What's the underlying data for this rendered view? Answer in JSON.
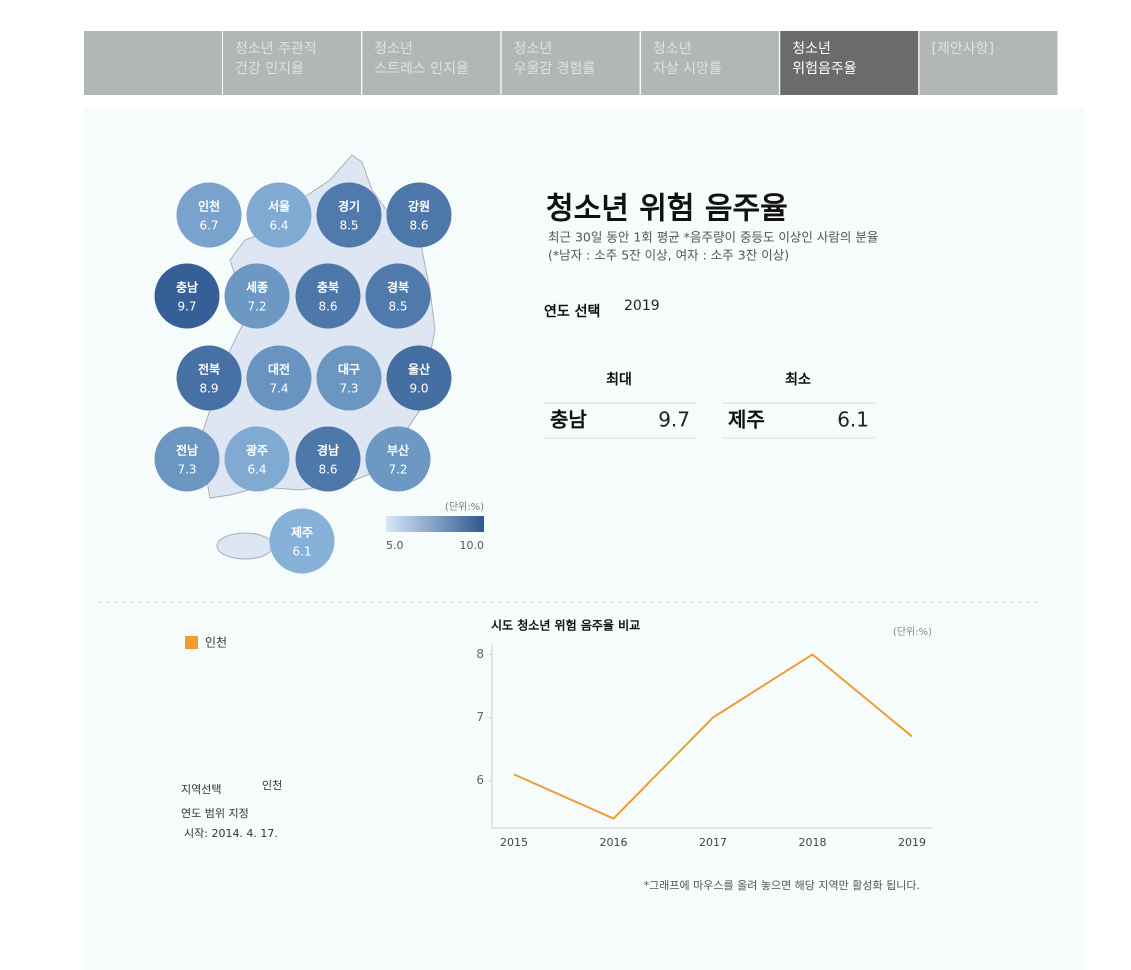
{
  "nav": {
    "tabs": [
      {
        "lines": [
          "청소년 주관적",
          "건강 인지율"
        ]
      },
      {
        "lines": [
          "청소년",
          "스트레스 인지율"
        ]
      },
      {
        "lines": [
          "청소년",
          "우울감 경험률"
        ]
      },
      {
        "lines": [
          "청소년",
          "자살 시망률"
        ]
      },
      {
        "lines": [
          "청소년",
          "위험음주율"
        ],
        "active": true
      },
      {
        "lines": [
          "[제안사항]"
        ]
      }
    ]
  },
  "map": {
    "regions": [
      {
        "name": "인천",
        "value": 6.7
      },
      {
        "name": "서울",
        "value": 6.4
      },
      {
        "name": "경기",
        "value": 8.5
      },
      {
        "name": "강원",
        "value": 8.6
      },
      {
        "name": "충남",
        "value": 9.7
      },
      {
        "name": "세종",
        "value": 7.2
      },
      {
        "name": "충북",
        "value": 8.6
      },
      {
        "name": "경북",
        "value": 8.5
      },
      {
        "name": "전북",
        "value": 8.9
      },
      {
        "name": "대전",
        "value": 7.4
      },
      {
        "name": "대구",
        "value": 7.3
      },
      {
        "name": "울산",
        "value": 9,
        "value_label": "9.0"
      },
      {
        "name": "전남",
        "value": 7.3
      },
      {
        "name": "광주",
        "value": 6.4
      },
      {
        "name": "경남",
        "value": 8.6
      },
      {
        "name": "부산",
        "value": 7.2
      },
      {
        "name": "제주",
        "value": 6.1
      }
    ],
    "legend": {
      "unit": "(단위:%)",
      "min": {
        "value": 5,
        "label": "5.0"
      },
      "max": {
        "value": 10,
        "label": "10.0"
      }
    }
  },
  "info": {
    "title": "청소년 위험 음주율",
    "description": [
      "최근 30일 동안 1회 평균 *음주량이 중등도 이상인 사람의 분율",
      "(*남자 : 소주 5잔 이상, 여자 : 소주 3잔 이상)"
    ],
    "year_label": "연도 선택",
    "year": "2019",
    "max_label": "최대",
    "min_label": "최소",
    "max": {
      "name": "충남",
      "value": 9.7
    },
    "min": {
      "name": "제주",
      "value": 6.1
    }
  },
  "controls": {
    "region_label": "지역선택",
    "region": "인천",
    "range_label": "연도 범위 지정",
    "start": "시작: 2014. 4. 17."
  },
  "chart_data": {
    "type": "line",
    "title": "시도 청소년 위험 음주율 비교",
    "unit": "(단위:%)",
    "categories": [
      "2015",
      "2016",
      "2017",
      "2018",
      "2019"
    ],
    "series": [
      {
        "name": "인천",
        "color": "#f39a34",
        "values": [
          6.1,
          5.4,
          7.0,
          8.0,
          6.7
        ]
      }
    ],
    "ylim": [
      5.25,
      8.15
    ],
    "yticks": [
      6,
      7,
      8
    ],
    "note": "*그래프에 마우스를 올려 놓으면 해당 지역만 활성화 됩니다."
  }
}
